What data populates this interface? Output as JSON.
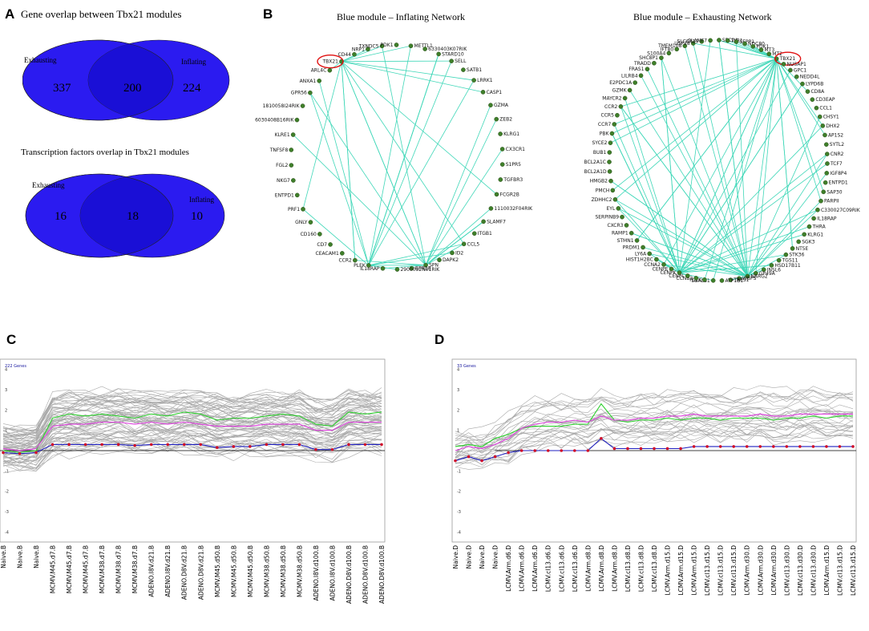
{
  "panelA": {
    "letter": "A",
    "title1": "Gene overlap between Tbx21 modules",
    "venn1": {
      "left_label": "Exhausting",
      "right_label": "Inflating",
      "left_only": "337",
      "overlap": "200",
      "right_only": "224"
    },
    "title2": "Transcription factors overlap in Tbx21 modules",
    "venn2": {
      "left_label": "Exhausting",
      "right_label": "Inflating",
      "left_only": "16",
      "overlap": "18",
      "right_only": "10"
    },
    "colors": {
      "venn_fill": "#2b1bf0",
      "venn_overlap": "#1a0fd6"
    }
  },
  "panelB": {
    "letter": "B",
    "inflating": {
      "title": "Blue module – Inflating Network",
      "highlight": "TBX21",
      "labels": [
        "TBX21",
        "CD44",
        "NRP1",
        "TXNDC5",
        "PDK1",
        "METTL1",
        "6330403K07RIK",
        "STARD10",
        "SELL",
        "SATB1",
        "LRRK1",
        "CASP1",
        "GZMA",
        "ZEB2",
        "KLRG1",
        "CX3CR1",
        "S1PR5",
        "TGFBR3",
        "FCGR2B",
        "1110032F04RIK",
        "SLAMF7",
        "ITGB1",
        "CCL5",
        "ID2",
        "DAPK2",
        "SPN",
        "GPR18",
        "2900052N01RIK",
        "IL18RAP",
        "PLEK",
        "CCR2",
        "CEACAM1",
        "CD7",
        "CD160",
        "GNLY",
        "PRF1",
        "ENTPD1",
        "NKG7",
        "FGL2",
        "TNFSF8",
        "KLRE1",
        "6030408B16RIK",
        "1810058I24RIK",
        "GPR56",
        "ANXA1",
        "ARL4C"
      ]
    },
    "exhausting": {
      "title": "Blue module – Exhausting Network",
      "highlight": "TBX21",
      "labels": [
        "SHC8P1",
        "S100A4",
        "IFT80",
        "TMEM108",
        "USP28",
        "SLC6A19",
        "SLAMF7",
        "SPC24",
        "TLR1",
        "SEPP1",
        "NDC80",
        "PDK1",
        "MT3",
        "MT2",
        "TBX21",
        "NUSAP1",
        "GPC1",
        "NEDD4L",
        "LYPD6B",
        "CD8A",
        "CD3EAP",
        "CCL1",
        "CHSY1",
        "DHX2",
        "AP1S2",
        "SYTL2",
        "CNR2",
        "TCF7",
        "IGF8P4",
        "ENTPD1",
        "SAP30",
        "PARPII",
        "C330027C09RIK",
        "IL18RAP",
        "THRA",
        "KLRG1",
        "SGK3",
        "NT5E",
        "STK36",
        "TGS11",
        "HSD17B11",
        "INSL6",
        "GP49A",
        "NARG2",
        "WBPS",
        "TRPS1",
        "ATP1B1",
        "LGALS1",
        "PLEK",
        "CCNB2",
        "CENPL",
        "CENPK",
        "CENPE",
        "CCNA2",
        "HIST1H2BC",
        "LY6A",
        "PRDM1",
        "STMN1",
        "RAMP1",
        "CXCR3",
        "SERPINB9",
        "EYL",
        "ZDHHC2",
        "PMCH",
        "HMGB2",
        "BCL2A1D",
        "BCL2A1C",
        "BUB1",
        "SYCE2",
        "PBK",
        "CCR7",
        "CCR5",
        "CCR2",
        "MAYCR2",
        "GZMK",
        "E2PDC1A",
        "LILRB4",
        "FRAS1",
        "TRADD"
      ]
    }
  },
  "panelC": {
    "letter": "C",
    "gene_count": "222 Genes",
    "yticks": [
      "4",
      "3",
      "2",
      "1",
      "0",
      "-1",
      "-2",
      "-3",
      "-4"
    ],
    "xlabels": [
      "Naive.B",
      "Naive.B",
      "Naive.B",
      "MCMV.M45.d7.B",
      "MCMV.M45.d7.B",
      "MCMV.M45.d7.B",
      "MCMV.M38.d7.B",
      "MCMV.M38.d7.B",
      "MCMV.M38.d7.B",
      "ADENO.I8V.d21.B",
      "ADENO.I8V.d21.B",
      "ADENO.D8V.d21.B",
      "ADENO.D8V.d21.B",
      "MCMV.M45.d50.B",
      "MCMV.M45.d50.B",
      "MCMV.M45.d50.B",
      "MCMV.M38.d50.B",
      "MCMV.M38.d50.B",
      "MCMV.M38.d50.B",
      "ADENO.I8V.d100.B",
      "ADENO.I8V.d100.B",
      "ADENO.D8V.d100.B",
      "ADENO.D8V.d100.B",
      "ADENO.D8V.d100.B"
    ],
    "blue_values": [
      -0.1,
      -0.15,
      -0.1,
      0.3,
      0.3,
      0.3,
      0.3,
      0.3,
      0.25,
      0.3,
      0.3,
      0.3,
      0.3,
      0.15,
      0.2,
      0.2,
      0.3,
      0.3,
      0.3,
      0.05,
      0.05,
      0.3,
      0.3,
      0.3
    ],
    "magenta_values": [
      0.1,
      0.0,
      0.1,
      1.2,
      1.3,
      1.3,
      1.4,
      1.4,
      1.3,
      1.4,
      1.3,
      1.4,
      1.3,
      1.2,
      1.2,
      1.2,
      1.3,
      1.3,
      1.3,
      1.0,
      1.0,
      1.4,
      1.4,
      1.4
    ],
    "green_values": [
      0.0,
      -0.1,
      0.0,
      1.6,
      1.8,
      1.7,
      1.8,
      1.7,
      1.6,
      1.8,
      1.7,
      1.9,
      1.8,
      1.5,
      1.6,
      1.6,
      1.7,
      1.8,
      1.7,
      1.3,
      1.2,
      1.9,
      1.8,
      1.9
    ]
  },
  "panelD": {
    "letter": "D",
    "gene_count": "33 Genes",
    "yticks": [
      "4",
      "3",
      "2",
      "1",
      "0",
      "-1",
      "-2",
      "-3",
      "-4"
    ],
    "xlabels": [
      "Naive.D",
      "Naive.D",
      "Naive.D",
      "Naive.D",
      "LCMV.Arm.d6.D",
      "LCMV.Arm.d6.D",
      "LCMV.Arm.d6.D",
      "LCMV.cl13.d6.D",
      "LCMV.cl13.d6.D",
      "LCMV.cl13.d6.D",
      "LCMV.Arm.d8.D",
      "LCMV.Arm.d8.D",
      "LCMV.Arm.d8.D",
      "LCMV.cl13.d8.D",
      "LCMV.cl13.d8.D",
      "LCMV.cl13.d8.D",
      "LCMV.Arm.d15.D",
      "LCMV.Arm.d15.D",
      "LCMV.Arm.d15.D",
      "LCMV.cl13.d15.D",
      "LCMV.cl13.d15.D",
      "LCMV.cl13.d15.D",
      "LCMV.Arm.d30.D",
      "LCMV.Arm.d30.D",
      "LCMV.Arm.d30.D",
      "LCMV.cl13.d30.D",
      "LCMV.cl13.d30.D",
      "LCMV.cl13.d30.D",
      "LCMV.Arm.d15.D",
      "LCMV.cl13.d15.D",
      "LCMV.cl13.d15.D"
    ],
    "blue_values": [
      -0.5,
      -0.3,
      -0.5,
      -0.3,
      -0.1,
      0.0,
      0.0,
      0.0,
      0.0,
      0.0,
      0.0,
      0.6,
      0.1,
      0.1,
      0.1,
      0.1,
      0.1,
      0.1,
      0.2,
      0.2,
      0.2,
      0.2,
      0.2,
      0.2,
      0.2,
      0.2,
      0.2,
      0.2,
      0.2,
      0.2,
      0.2
    ],
    "magenta_values": [
      0.0,
      0.2,
      0.1,
      0.3,
      0.6,
      1.1,
      1.3,
      1.4,
      1.4,
      1.5,
      1.4,
      1.7,
      1.5,
      1.5,
      1.6,
      1.6,
      1.7,
      1.7,
      1.8,
      1.7,
      1.7,
      1.7,
      1.7,
      1.8,
      1.7,
      1.7,
      1.8,
      1.8,
      1.8,
      1.8,
      1.8
    ],
    "green_values": [
      0.2,
      0.3,
      0.2,
      0.6,
      0.8,
      1.1,
      1.2,
      1.2,
      1.2,
      1.3,
      1.3,
      2.3,
      1.5,
      1.4,
      1.5,
      1.5,
      1.6,
      1.5,
      1.6,
      1.6,
      1.5,
      1.6,
      1.6,
      1.6,
      1.5,
      1.6,
      1.6,
      1.7,
      1.6,
      1.7,
      1.7
    ]
  },
  "chart_data": [
    {
      "type": "line",
      "title": "222 Genes",
      "categories": "panelC.xlabels",
      "ylim": [
        -4.5,
        4.5
      ],
      "series": [
        {
          "name": "mean-blue",
          "values_ref": "panelC.blue_values"
        },
        {
          "name": "magenta",
          "values_ref": "panelC.magenta_values"
        },
        {
          "name": "green",
          "values_ref": "panelC.green_values"
        }
      ]
    },
    {
      "type": "line",
      "title": "33 Genes",
      "categories": "panelD.xlabels",
      "ylim": [
        -4.5,
        4.5
      ],
      "series": [
        {
          "name": "mean-blue",
          "values_ref": "panelD.blue_values"
        },
        {
          "name": "magenta",
          "values_ref": "panelD.magenta_values"
        },
        {
          "name": "green",
          "values_ref": "panelD.green_values"
        }
      ]
    }
  ]
}
